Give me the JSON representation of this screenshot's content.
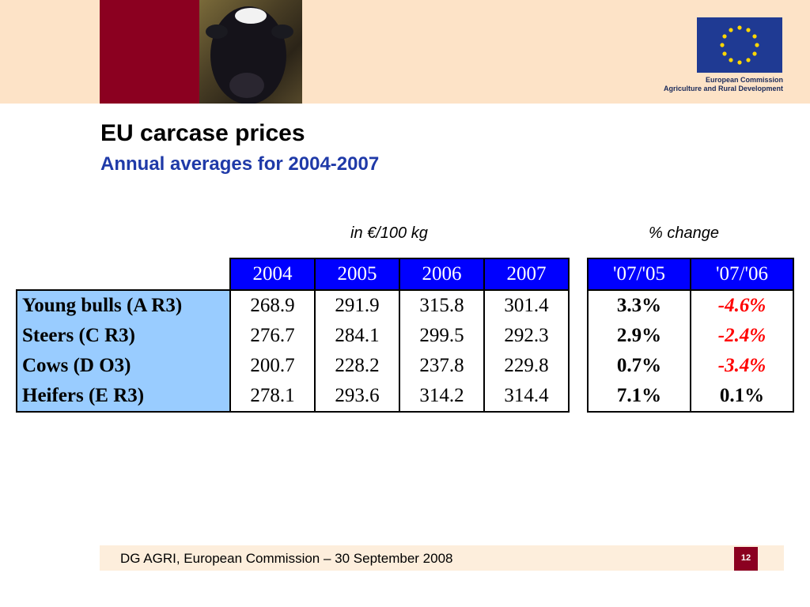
{
  "header": {
    "organisation_line1": "European Commission",
    "organisation_line2": "Agriculture and Rural Development",
    "flag_icon": "eu-flag-icon",
    "colors": {
      "band": "#fde3c7",
      "accent_red": "#8b0020",
      "flag_blue": "#1f3a93",
      "star_yellow": "#ffd700"
    }
  },
  "slide": {
    "title": "EU carcase prices",
    "subtitle": "Annual averages for 2004-2007",
    "unit_note": "in €/100 kg",
    "change_note": "% change"
  },
  "prices_table": {
    "years": [
      "2004",
      "2005",
      "2006",
      "2007"
    ],
    "rows": [
      {
        "label": "Young bulls (A R3)",
        "values": [
          "268.9",
          "291.9",
          "315.8",
          "301.4"
        ]
      },
      {
        "label": "Steers (C R3)",
        "values": [
          "276.7",
          "284.1",
          "299.5",
          "292.3"
        ]
      },
      {
        "label": "Cows (D O3)",
        "values": [
          "200.7",
          "228.2",
          "237.8",
          "229.8"
        ]
      },
      {
        "label": "Heifers (E R3)",
        "values": [
          "278.1",
          "293.6",
          "314.2",
          "314.4"
        ]
      }
    ]
  },
  "change_table": {
    "headers": [
      "'07/'05",
      "'07/'06"
    ],
    "rows": [
      [
        "3.3%",
        "-4.6%"
      ],
      [
        "2.9%",
        "-2.4%"
      ],
      [
        "0.7%",
        "-3.4%"
      ],
      [
        "7.1%",
        "0.1%"
      ]
    ],
    "colors": {
      "header_bg": "#0000ff",
      "negative": "#ff0000",
      "label_bg": "#99ccff"
    }
  },
  "footer": {
    "text": "DG AGRI, European Commission – 30 September 2008",
    "page_number": "12"
  }
}
